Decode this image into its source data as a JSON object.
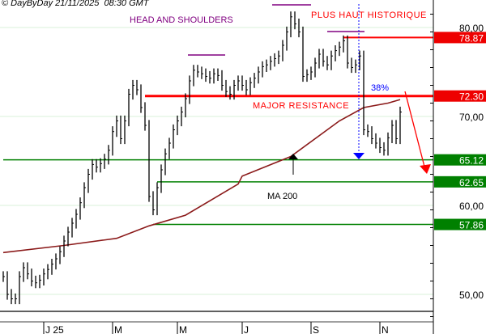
{
  "header": {
    "copyright": "© DayByDay 21/11/2025  08:30 GMT"
  },
  "colors": {
    "price": "#000000",
    "ma": "#8b1a1a",
    "resistance": "#ff0000",
    "support": "#008000",
    "grid": "#d8f0d8",
    "purple": "#800080",
    "blue": "#0000ff"
  },
  "chart_data": {
    "type": "line",
    "title": "",
    "xlabel": "",
    "ylabel": "",
    "ylim": [
      46.5,
      82.5
    ],
    "y_ticks": [
      {
        "value": 80,
        "label": "80,00"
      },
      {
        "value": 70,
        "label": "70,00"
      },
      {
        "value": 60,
        "label": "60,00"
      },
      {
        "value": 50,
        "label": "50,00"
      }
    ],
    "x_ticks": [
      {
        "index": 10,
        "label": "J 25"
      },
      {
        "index": 27,
        "label": "M"
      },
      {
        "index": 43,
        "label": "M"
      },
      {
        "index": 59,
        "label": "J"
      },
      {
        "index": 76,
        "label": "S"
      },
      {
        "index": 93,
        "label": "N"
      }
    ],
    "grid": true,
    "series": [
      {
        "kind": "price",
        "values": [
          52,
          50,
          49.5,
          49.5,
          52,
          53,
          52.3,
          51.5,
          51.3,
          51.6,
          52.3,
          52.8,
          53.4,
          54,
          54.8,
          56,
          57,
          58,
          59,
          60.3,
          62,
          63.5,
          64.6,
          64.3,
          64.7,
          65.2,
          66.2,
          68.3,
          69.5,
          67.5,
          69.5,
          72.5,
          73.5,
          73,
          71,
          69,
          61,
          59.5,
          62,
          64,
          65.8,
          67,
          68.5,
          69.5,
          70.5,
          72,
          74,
          75.2,
          75,
          74.8,
          74.5,
          74.3,
          74.8,
          74.6,
          73.5,
          72.8,
          72.5,
          73.5,
          74,
          73.5,
          73,
          73.8,
          74.3,
          75,
          75.6,
          75.8,
          76.2,
          76.5,
          76.8,
          78,
          79.5,
          81.2,
          80.4,
          79.5,
          74.5,
          74.7,
          75,
          76,
          77,
          76.2,
          75.8,
          76.8,
          77.4,
          77.8,
          78.5,
          76,
          75.5,
          75.8,
          76.8,
          68.5,
          68.3,
          67.5,
          67,
          66.5,
          66.2,
          67.6,
          69,
          67.5,
          70.5
        ]
      },
      {
        "kind": "ma",
        "name": "MA 200",
        "points": [
          [
            0,
            54.7
          ],
          [
            15,
            55.5
          ],
          [
            28,
            56.3
          ],
          [
            36,
            57.7
          ],
          [
            45,
            58.9
          ],
          [
            58,
            62.4
          ],
          [
            59,
            63.3
          ],
          [
            71,
            65.5
          ],
          [
            83,
            69.5
          ],
          [
            89,
            71
          ],
          [
            95,
            71.5
          ],
          [
            98,
            71.9
          ]
        ]
      }
    ],
    "levels": [
      {
        "value": 78.87,
        "label": "78.87",
        "type": "resistance",
        "from_index": 84
      },
      {
        "value": 72.3,
        "label": "72.30",
        "type": "resistance",
        "from_index": 35,
        "major": true
      },
      {
        "value": 65.12,
        "label": "65.12",
        "type": "support",
        "from_index": 0
      },
      {
        "value": 62.65,
        "label": "62.65",
        "type": "support",
        "from_index": 38
      },
      {
        "value": 57.86,
        "label": "57.86",
        "type": "support",
        "from_index": 37
      }
    ],
    "annotations": {
      "head_and_shoulders": "HEAD AND SHOULDERS",
      "all_time_high": "PLUS HAUT HISTORIQUE",
      "major_resistance": "MAJOR RESISTANCE",
      "retracement": "38%",
      "ma_label": "MA 200"
    }
  }
}
